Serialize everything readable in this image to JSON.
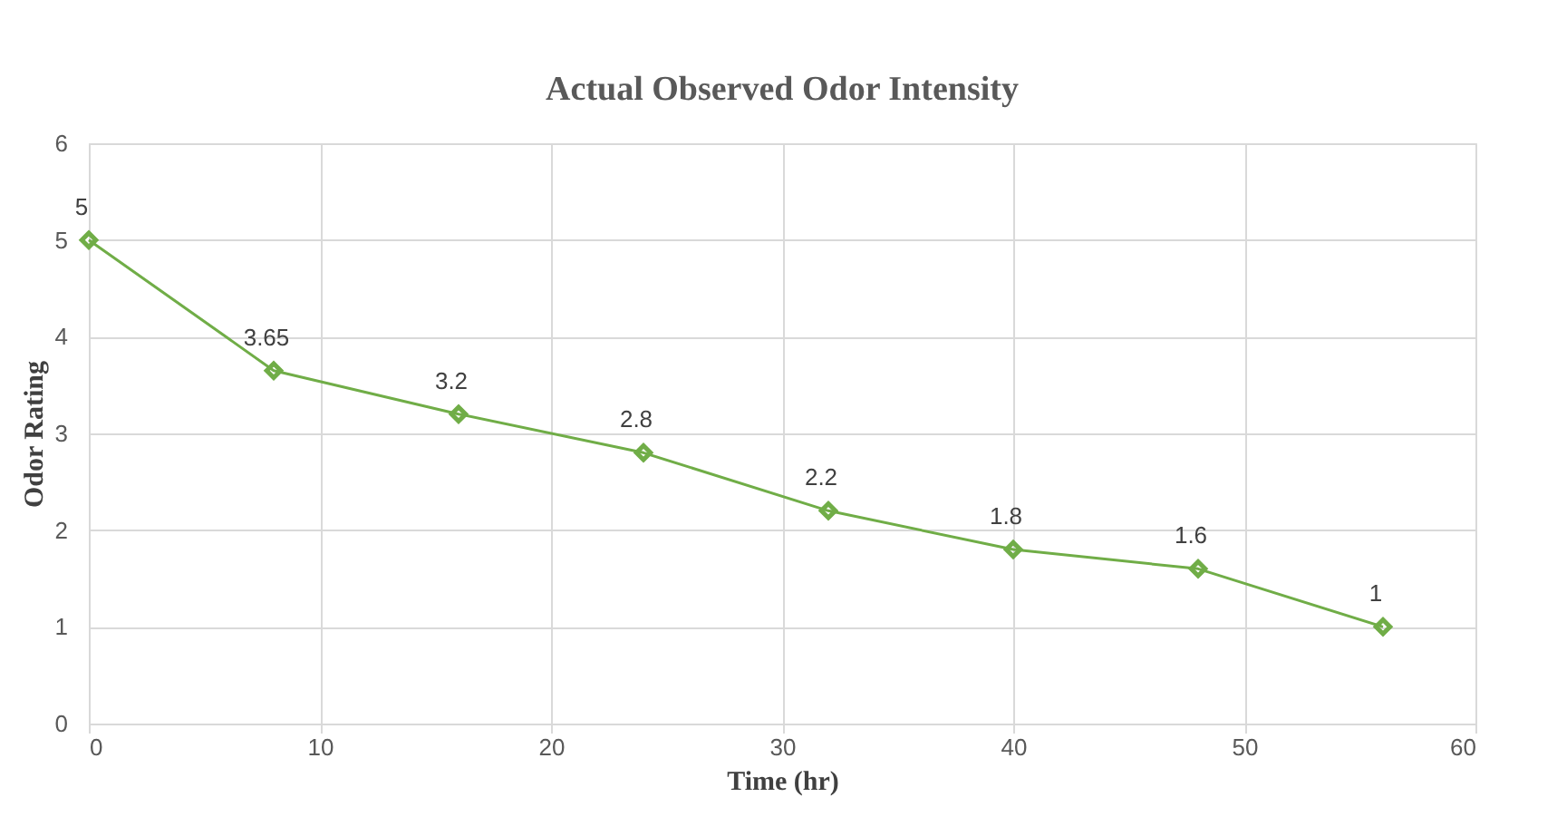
{
  "chart_data": {
    "type": "line",
    "title": "Actual Observed Odor Intensity",
    "xlabel": "Time (hr)",
    "ylabel": "Odor Rating",
    "x": [
      0,
      8,
      16,
      24,
      32,
      40,
      48,
      56
    ],
    "series": [
      {
        "color": "#70ad47",
        "values": [
          5,
          3.65,
          3.2,
          2.8,
          2.2,
          1.8,
          1.6,
          1
        ]
      }
    ],
    "xlim": [
      0,
      60
    ],
    "xticks": [
      0,
      10,
      20,
      30,
      40,
      50,
      60
    ],
    "ylim": [
      0,
      6
    ],
    "yticks": [
      0,
      1,
      2,
      3,
      4,
      5,
      6
    ],
    "grid": true,
    "marker": "diamond",
    "line_style": "solid",
    "data_labels": true
  }
}
